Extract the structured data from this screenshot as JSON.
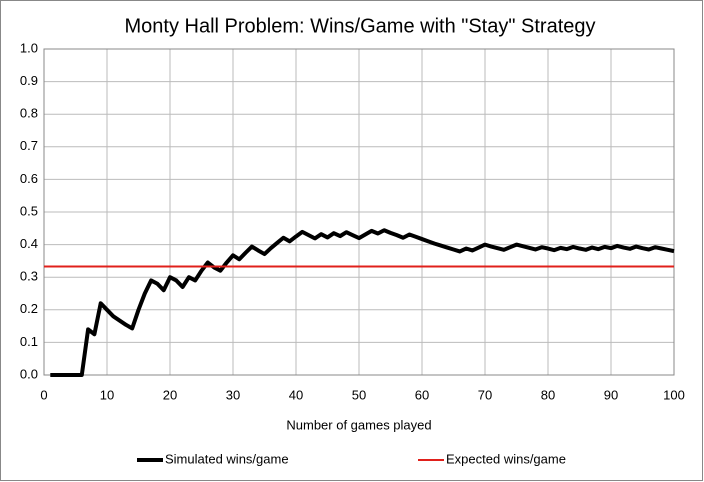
{
  "chart_data": {
    "type": "line",
    "title": "Monty Hall Problem: Wins/Game with \"Stay\" Strategy",
    "x_label": "Number of games played",
    "x": [
      1,
      2,
      3,
      4,
      5,
      6,
      7,
      8,
      9,
      10,
      11,
      12,
      13,
      14,
      15,
      16,
      17,
      18,
      19,
      20,
      21,
      22,
      23,
      24,
      25,
      26,
      27,
      28,
      29,
      30,
      31,
      32,
      33,
      34,
      35,
      36,
      37,
      38,
      39,
      40,
      41,
      42,
      43,
      44,
      45,
      46,
      47,
      48,
      49,
      50,
      51,
      52,
      53,
      54,
      55,
      56,
      57,
      58,
      59,
      60,
      61,
      62,
      63,
      64,
      65,
      66,
      67,
      68,
      69,
      70,
      71,
      72,
      73,
      74,
      75,
      76,
      77,
      78,
      79,
      80,
      81,
      82,
      83,
      84,
      85,
      86,
      87,
      88,
      89,
      90,
      91,
      92,
      93,
      94,
      95,
      96,
      97,
      98,
      99,
      100
    ],
    "series": [
      {
        "name": "Simulated wins/game",
        "color": "#000000",
        "values": [
          0,
          0,
          0,
          0,
          0,
          0,
          0.14,
          0.125,
          0.22,
          0.2,
          0.18,
          0.167,
          0.154,
          0.143,
          0.2,
          0.25,
          0.29,
          0.28,
          0.26,
          0.3,
          0.29,
          0.27,
          0.3,
          0.29,
          0.32,
          0.345,
          0.33,
          0.32,
          0.345,
          0.367,
          0.355,
          0.375,
          0.394,
          0.382,
          0.371,
          0.389,
          0.405,
          0.421,
          0.41,
          0.425,
          0.439,
          0.429,
          0.419,
          0.432,
          0.422,
          0.435,
          0.426,
          0.438,
          0.429,
          0.42,
          0.431,
          0.442,
          0.434,
          0.444,
          0.436,
          0.429,
          0.421,
          0.431,
          0.424,
          0.417,
          0.41,
          0.403,
          0.397,
          0.391,
          0.385,
          0.379,
          0.388,
          0.382,
          0.391,
          0.4,
          0.394,
          0.389,
          0.384,
          0.392,
          0.4,
          0.395,
          0.39,
          0.385,
          0.392,
          0.388,
          0.383,
          0.39,
          0.386,
          0.393,
          0.388,
          0.384,
          0.391,
          0.386,
          0.393,
          0.389,
          0.396,
          0.391,
          0.387,
          0.394,
          0.389,
          0.385,
          0.392,
          0.388,
          0.384,
          0.38
        ]
      },
      {
        "name": "Expected wins/game",
        "color": "#e0201b",
        "x": [
          0,
          100
        ],
        "values": [
          0.333,
          0.333
        ]
      }
    ],
    "xlim": [
      0,
      100
    ],
    "xticks": [
      0,
      10,
      20,
      30,
      40,
      50,
      60,
      70,
      80,
      90,
      100
    ],
    "ylim": [
      0,
      1
    ],
    "yticks": [
      {
        "value": 0,
        "label": "0.0"
      },
      {
        "value": 0.1,
        "label": "0.1"
      },
      {
        "value": 0.2,
        "label": "0.2"
      },
      {
        "value": 0.3,
        "label": "0.3"
      },
      {
        "value": 0.4,
        "label": "0.4"
      },
      {
        "value": 0.5,
        "label": "0.5"
      },
      {
        "value": 0.6,
        "label": "0.6"
      },
      {
        "value": 0.7,
        "label": "0.7"
      },
      {
        "value": 0.8,
        "label": "0.8"
      },
      {
        "value": 0.9,
        "label": "0.9"
      },
      {
        "value": 1,
        "label": "1.0"
      }
    ],
    "grid": true,
    "legend": "bottom"
  }
}
